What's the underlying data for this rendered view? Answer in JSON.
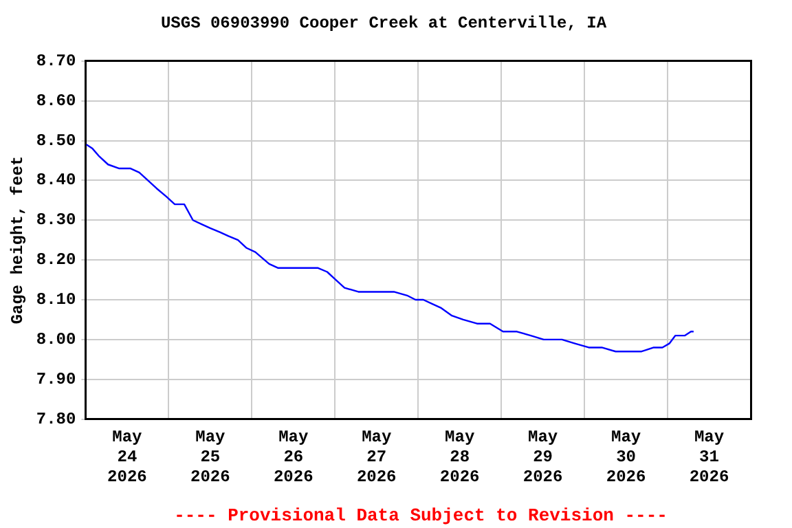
{
  "chart_data": {
    "type": "line",
    "title": "USGS 06903990 Cooper Creek at Centerville, IA",
    "ylabel": "Gage height, feet",
    "annotations": [
      "---- Provisional Data Subject to Revision ----"
    ],
    "x": [
      "2026-05-24T00:15",
      "2026-05-24T02:00",
      "2026-05-24T04:00",
      "2026-05-24T06:30",
      "2026-05-24T09:45",
      "2026-05-24T13:00",
      "2026-05-24T15:30",
      "2026-05-24T18:00",
      "2026-05-24T20:30",
      "2026-05-24T23:15",
      "2026-05-25T01:45",
      "2026-05-25T04:30",
      "2026-05-25T07:00",
      "2026-05-25T09:30",
      "2026-05-25T12:00",
      "2026-05-25T14:45",
      "2026-05-25T17:15",
      "2026-05-25T20:00",
      "2026-05-25T22:30",
      "2026-05-26T01:00",
      "2026-05-26T05:00",
      "2026-05-26T07:30",
      "2026-05-26T11:30",
      "2026-05-26T15:15",
      "2026-05-26T19:00",
      "2026-05-26T21:45",
      "2026-05-27T00:15",
      "2026-05-27T02:45",
      "2026-05-27T06:45",
      "2026-05-27T12:00",
      "2026-05-27T17:00",
      "2026-05-27T21:00",
      "2026-05-27T23:15",
      "2026-05-28T01:30",
      "2026-05-28T04:00",
      "2026-05-28T06:30",
      "2026-05-28T09:45",
      "2026-05-28T13:00",
      "2026-05-28T17:00",
      "2026-05-28T20:45",
      "2026-05-29T00:30",
      "2026-05-29T04:30",
      "2026-05-29T08:30",
      "2026-05-29T12:15",
      "2026-05-29T17:30",
      "2026-05-29T21:15",
      "2026-05-30T01:15",
      "2026-05-30T05:00",
      "2026-05-30T09:00",
      "2026-05-30T12:45",
      "2026-05-30T16:30",
      "2026-05-30T20:00",
      "2026-05-30T22:30",
      "2026-05-31T00:30",
      "2026-05-31T02:15",
      "2026-05-31T05:00",
      "2026-05-31T06:45",
      "2026-05-31T07:30"
    ],
    "series": [
      {
        "color": "#0000ff",
        "values": [
          8.49,
          8.48,
          8.46,
          8.44,
          8.43,
          8.43,
          8.42,
          8.4,
          8.38,
          8.36,
          8.34,
          8.34,
          8.3,
          8.29,
          8.28,
          8.27,
          8.26,
          8.25,
          8.23,
          8.22,
          8.19,
          8.18,
          8.18,
          8.18,
          8.18,
          8.17,
          8.15,
          8.13,
          8.12,
          8.12,
          8.12,
          8.11,
          8.1,
          8.1,
          8.09,
          8.08,
          8.06,
          8.05,
          8.04,
          8.04,
          8.02,
          8.02,
          8.01,
          8.0,
          8.0,
          7.99,
          7.98,
          7.98,
          7.97,
          7.97,
          7.97,
          7.98,
          7.98,
          7.99,
          8.01,
          8.01,
          8.02,
          8.02
        ]
      }
    ],
    "xlim": [
      "2026-05-24",
      "2026-06-01"
    ],
    "xticks": [
      {
        "value": "2026-05-24T12:00",
        "label": "May 24 2026"
      },
      {
        "value": "2026-05-25",
        "label": null
      },
      {
        "value": "2026-05-25T12:00",
        "label": "May 25 2026"
      },
      {
        "value": "2026-05-26",
        "label": null
      },
      {
        "value": "2026-05-26T12:00",
        "label": "May 26 2026"
      },
      {
        "value": "2026-05-27",
        "label": null
      },
      {
        "value": "2026-05-27T12:00",
        "label": "May 27 2026"
      },
      {
        "value": "2026-05-28",
        "label": null
      },
      {
        "value": "2026-05-28T12:00",
        "label": "May 28 2026"
      },
      {
        "value": "2026-05-29",
        "label": null
      },
      {
        "value": "2026-05-29T12:00",
        "label": "May 29 2026"
      },
      {
        "value": "2026-05-30",
        "label": null
      },
      {
        "value": "2026-05-30T12:00",
        "label": "May 30 2026"
      },
      {
        "value": "2026-05-31",
        "label": null
      },
      {
        "value": "2026-05-31T12:00",
        "label": "May 31 2026"
      }
    ],
    "ylim": [
      7.8,
      8.7
    ],
    "yticks": [
      {
        "value": 7.8,
        "label": "7.80"
      },
      {
        "value": 7.9,
        "label": "7.90"
      },
      {
        "value": 8.0,
        "label": "8.00"
      },
      {
        "value": 8.1,
        "label": "8.10"
      },
      {
        "value": 8.2,
        "label": "8.20"
      },
      {
        "value": 8.3,
        "label": "8.30"
      },
      {
        "value": 8.4,
        "label": "8.40"
      },
      {
        "value": 8.5,
        "label": "8.50"
      },
      {
        "value": 8.6,
        "label": "8.60"
      },
      {
        "value": 8.7,
        "label": "8.70"
      }
    ],
    "grid": true,
    "legend": false,
    "marker": "none",
    "line_style": "solid"
  }
}
